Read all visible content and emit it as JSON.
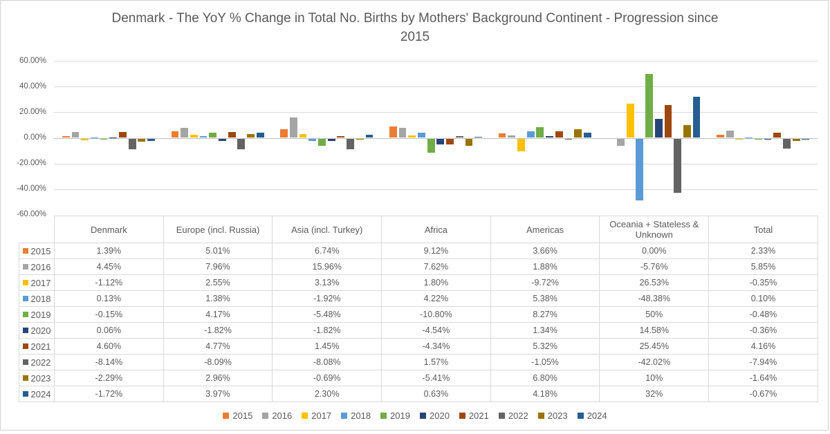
{
  "title": {
    "line1": "Denmark - The YoY % Change in Total No. Births by Mothers' Background Continent - Progression since",
    "line2": "2015"
  },
  "chart_data": {
    "type": "bar",
    "title": "Denmark - The YoY % Change in Total No. Births by Mothers' Background Continent - Progression since 2015",
    "xlabel": "",
    "ylabel": "",
    "value_format": "percent",
    "ylim": [
      -60,
      60
    ],
    "grid": true,
    "legend_position": "bottom",
    "y_ticks": [
      {
        "label": "60.00%",
        "value": 60
      },
      {
        "label": "40.00%",
        "value": 40
      },
      {
        "label": "20.00%",
        "value": 20
      },
      {
        "label": "0.00%",
        "value": 0
      },
      {
        "label": "-20.00%",
        "value": -20
      },
      {
        "label": "-40.00%",
        "value": -40
      },
      {
        "label": "-60.00%",
        "value": -60
      }
    ],
    "categories": [
      "Denmark",
      "Europe (incl. Russia)",
      "Asia (incl. Turkey)",
      "Africa",
      "Americas",
      "Oceania + Stateless & Unknown",
      "Total"
    ],
    "series": [
      {
        "name": "2015",
        "color": "#ED7D31",
        "values": [
          1.39,
          5.01,
          6.74,
          9.12,
          3.66,
          0.0,
          2.33
        ]
      },
      {
        "name": "2016",
        "color": "#A5A5A5",
        "values": [
          4.45,
          7.96,
          15.96,
          7.62,
          1.88,
          -5.76,
          5.85
        ]
      },
      {
        "name": "2017",
        "color": "#FFC000",
        "values": [
          -1.12,
          2.55,
          3.13,
          1.8,
          -9.72,
          26.53,
          -0.35
        ]
      },
      {
        "name": "2018",
        "color": "#5B9BD5",
        "values": [
          0.13,
          1.38,
          -1.92,
          4.22,
          5.38,
          -48.38,
          0.1
        ]
      },
      {
        "name": "2019",
        "color": "#70AD47",
        "values": [
          -0.15,
          4.17,
          -5.48,
          -10.8,
          8.27,
          50,
          -0.48
        ]
      },
      {
        "name": "2020",
        "color": "#264478",
        "values": [
          0.06,
          -1.82,
          -1.82,
          -4.54,
          1.34,
          14.58,
          -0.36
        ]
      },
      {
        "name": "2021",
        "color": "#9E480E",
        "values": [
          4.6,
          4.77,
          1.45,
          -4.34,
          5.32,
          25.45,
          4.16
        ]
      },
      {
        "name": "2022",
        "color": "#636363",
        "values": [
          -8.14,
          -8.09,
          -8.08,
          1.57,
          -1.05,
          -42.02,
          -7.94
        ]
      },
      {
        "name": "2023",
        "color": "#997300",
        "values": [
          -2.29,
          2.96,
          -0.69,
          -5.41,
          6.8,
          10,
          -1.64
        ]
      },
      {
        "name": "2024",
        "color": "#255E91",
        "values": [
          -1.72,
          3.97,
          2.3,
          0.63,
          4.18,
          32,
          -0.67
        ]
      }
    ]
  },
  "table": {
    "columns": [
      "Denmark",
      "Europe (incl. Russia)",
      "Asia (incl. Turkey)",
      "Africa",
      "Americas",
      "Oceania + Stateless & Unknown",
      "Total"
    ],
    "rows": [
      {
        "year": "2015",
        "color": "#ED7D31",
        "cells": [
          "1.39%",
          "5.01%",
          "6.74%",
          "9.12%",
          "3.66%",
          "0.00%",
          "2.33%"
        ]
      },
      {
        "year": "2016",
        "color": "#A5A5A5",
        "cells": [
          "4.45%",
          "7.96%",
          "15.96%",
          "7.62%",
          "1.88%",
          "-5.76%",
          "5.85%"
        ]
      },
      {
        "year": "2017",
        "color": "#FFC000",
        "cells": [
          "-1.12%",
          "2.55%",
          "3.13%",
          "1.80%",
          "-9.72%",
          "26.53%",
          "-0.35%"
        ]
      },
      {
        "year": "2018",
        "color": "#5B9BD5",
        "cells": [
          "0.13%",
          "1.38%",
          "-1.92%",
          "4.22%",
          "5.38%",
          "-48.38%",
          "0.10%"
        ]
      },
      {
        "year": "2019",
        "color": "#70AD47",
        "cells": [
          "-0.15%",
          "4.17%",
          "-5.48%",
          "-10.80%",
          "8.27%",
          "50%",
          "-0.48%"
        ]
      },
      {
        "year": "2020",
        "color": "#264478",
        "cells": [
          "0.06%",
          "-1.82%",
          "-1.82%",
          "-4.54%",
          "1.34%",
          "14.58%",
          "-0.36%"
        ]
      },
      {
        "year": "2021",
        "color": "#9E480E",
        "cells": [
          "4.60%",
          "4.77%",
          "1.45%",
          "-4.34%",
          "5.32%",
          "25.45%",
          "4.16%"
        ]
      },
      {
        "year": "2022",
        "color": "#636363",
        "cells": [
          "-8.14%",
          "-8.09%",
          "-8.08%",
          "1.57%",
          "-1.05%",
          "-42.02%",
          "-7.94%"
        ]
      },
      {
        "year": "2023",
        "color": "#997300",
        "cells": [
          "-2.29%",
          "2.96%",
          "-0.69%",
          "-5.41%",
          "6.80%",
          "10%",
          "-1.64%"
        ]
      },
      {
        "year": "2024",
        "color": "#255E91",
        "cells": [
          "-1.72%",
          "3.97%",
          "2.30%",
          "0.63%",
          "4.18%",
          "32%",
          "-0.67%"
        ]
      }
    ]
  },
  "legend": {
    "items": [
      {
        "label": "2015",
        "color": "#ED7D31"
      },
      {
        "label": "2016",
        "color": "#A5A5A5"
      },
      {
        "label": "2017",
        "color": "#FFC000"
      },
      {
        "label": "2018",
        "color": "#5B9BD5"
      },
      {
        "label": "2019",
        "color": "#70AD47"
      },
      {
        "label": "2020",
        "color": "#264478"
      },
      {
        "label": "2021",
        "color": "#9E480E"
      },
      {
        "label": "2022",
        "color": "#636363"
      },
      {
        "label": "2023",
        "color": "#997300"
      },
      {
        "label": "2024",
        "color": "#255E91"
      }
    ]
  },
  "colors": {
    "gridline": "#D9D9D9",
    "zero_axis": "#BFBFBF",
    "text": "#595959",
    "table_border": "#D9D9D9",
    "chart_border": "#D2D2D2"
  }
}
